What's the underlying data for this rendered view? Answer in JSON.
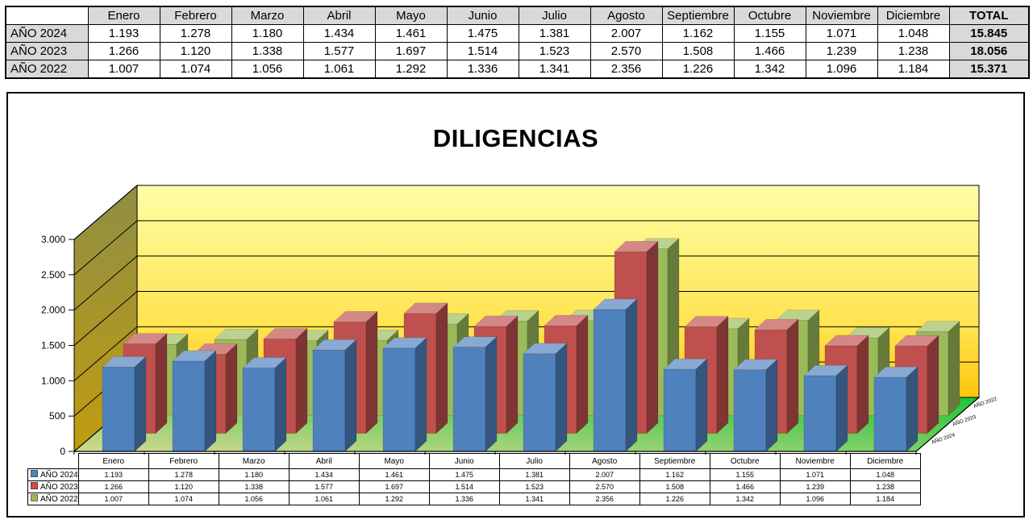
{
  "months": [
    "Enero",
    "Febrero",
    "Marzo",
    "Abril",
    "Mayo",
    "Junio",
    "Julio",
    "Agosto",
    "Septiembre",
    "Octubre",
    "Noviembre",
    "Diciembre"
  ],
  "totals_table": {
    "corner_label": "",
    "total_header": "TOTAL",
    "header_bg": "#D9D9D9",
    "rows": [
      {
        "label": "AÑO 2024",
        "cells": [
          "1.193",
          "1.278",
          "1.180",
          "1.434",
          "1.461",
          "1.475",
          "1.381",
          "2.007",
          "1.162",
          "1.155",
          "1.071",
          "1.048"
        ],
        "total": "15.845"
      },
      {
        "label": "AÑO 2023",
        "cells": [
          "1.266",
          "1.120",
          "1.338",
          "1.577",
          "1.697",
          "1.514",
          "1.523",
          "2.570",
          "1.508",
          "1.466",
          "1.239",
          "1.238"
        ],
        "total": "18.056"
      },
      {
        "label": "AÑO 2022",
        "cells": [
          "1.007",
          "1.074",
          "1.056",
          "1.061",
          "1.292",
          "1.336",
          "1.341",
          "2.356",
          "1.226",
          "1.342",
          "1.096",
          "1.184"
        ],
        "total": "15.371"
      }
    ]
  },
  "chart_data": {
    "type": "bar",
    "style": "3d-clustered",
    "title": "DILIGENCIAS",
    "categories": [
      "Enero",
      "Febrero",
      "Marzo",
      "Abril",
      "Mayo",
      "Junio",
      "Julio",
      "Agosto",
      "Septiembre",
      "Octubre",
      "Noviembre",
      "Diciembre"
    ],
    "series": [
      {
        "name": "AÑO 2024",
        "color": "#4F81BD",
        "values": [
          1193,
          1278,
          1180,
          1434,
          1461,
          1475,
          1381,
          2007,
          1162,
          1155,
          1071,
          1048
        ]
      },
      {
        "name": "AÑO 2023",
        "color": "#C0504D",
        "values": [
          1266,
          1120,
          1338,
          1577,
          1697,
          1514,
          1523,
          2570,
          1508,
          1466,
          1239,
          1238
        ]
      },
      {
        "name": "AÑO 2022",
        "color": "#9BBB59",
        "values": [
          1007,
          1074,
          1056,
          1061,
          1292,
          1336,
          1341,
          2356,
          1226,
          1342,
          1096,
          1184
        ]
      }
    ],
    "ylim": [
      0,
      3000
    ],
    "ytick_step": 500,
    "ytick_labels": [
      "0",
      "500",
      "1.000",
      "1.500",
      "2.000",
      "2.500",
      "3.000"
    ],
    "grid": true,
    "legend_position": "series-axis-right",
    "series_axis_labels": [
      "AÑO 2024",
      "AÑO 2023",
      "AÑO 2022"
    ],
    "walls": {
      "back_top": "#FFFFA6",
      "back_mid": "#FFE14A",
      "back_bottom": "#FFC60E",
      "side_top": "#8F8E44",
      "side_bottom": "#C09C10",
      "floor_front": "#D3D890",
      "floor_back": "#1EC437"
    }
  },
  "chart_table": {
    "display_rows": [
      {
        "label": "AÑO 2024",
        "color": "#4F81BD",
        "cells": [
          "1.193",
          "1.278",
          "1.180",
          "1.434",
          "1.461",
          "1.475",
          "1.381",
          "2.007",
          "1.162",
          "1.155",
          "1.071",
          "1.048"
        ]
      },
      {
        "label": "AÑO 2023",
        "color": "#C0504D",
        "cells": [
          "1.266",
          "1.120",
          "1.338",
          "1.577",
          "1.697",
          "1.514",
          "1.523",
          "2.570",
          "1.508",
          "1.466",
          "1.239",
          "1.238"
        ]
      },
      {
        "label": "AÑO 2022",
        "color": "#9BBB59",
        "cells": [
          "1.007",
          "1.074",
          "1.056",
          "1.061",
          "1.292",
          "1.336",
          "1.341",
          "2.356",
          "1.226",
          "1.342",
          "1.096",
          "1.184"
        ]
      }
    ]
  }
}
